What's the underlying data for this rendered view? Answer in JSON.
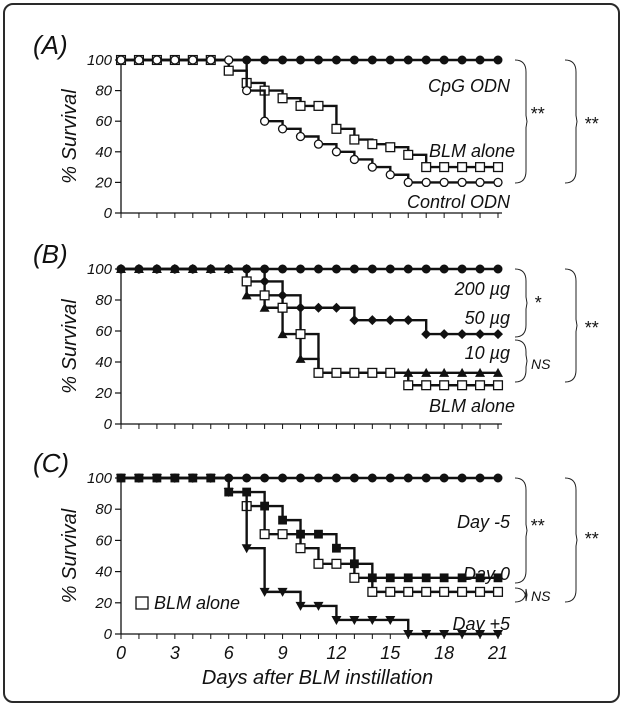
{
  "chart_data": [
    {
      "panel": "(A)",
      "type": "line",
      "step": true,
      "ylabel": "% Survival",
      "xlabel": "",
      "ylim": [
        0,
        100
      ],
      "xlim": [
        0,
        21
      ],
      "yticks": [
        "0",
        "20",
        "40",
        "60",
        "80",
        "100"
      ],
      "x": [
        0,
        1,
        2,
        3,
        4,
        5,
        6,
        7,
        8,
        9,
        10,
        11,
        12,
        13,
        14,
        15,
        16,
        17,
        18,
        19,
        20,
        21
      ],
      "series": [
        {
          "name": "CpG ODN",
          "marker": "circle-filled",
          "values": [
            100,
            100,
            100,
            100,
            100,
            100,
            100,
            100,
            100,
            100,
            100,
            100,
            100,
            100,
            100,
            100,
            100,
            100,
            100,
            100,
            100,
            100
          ]
        },
        {
          "name": "BLM alone",
          "marker": "square-open",
          "values": [
            100,
            100,
            100,
            100,
            100,
            100,
            93,
            85,
            80,
            75,
            70,
            70,
            55,
            48,
            45,
            43,
            38,
            30,
            30,
            30,
            30,
            30
          ]
        },
        {
          "name": "Control ODN",
          "marker": "circle-open",
          "values": [
            100,
            100,
            100,
            100,
            100,
            100,
            100,
            80,
            60,
            55,
            50,
            45,
            40,
            35,
            30,
            25,
            20,
            20,
            20,
            20,
            20,
            20
          ]
        }
      ],
      "annotations": [
        {
          "text": "**",
          "range": "CpG ODN vs BLM alone"
        },
        {
          "text": "**",
          "range": "CpG ODN vs Control ODN"
        }
      ]
    },
    {
      "panel": "(B)",
      "type": "line",
      "step": true,
      "ylabel": "% Survival",
      "xlabel": "",
      "ylim": [
        0,
        100
      ],
      "xlim": [
        0,
        21
      ],
      "yticks": [
        "0",
        "20",
        "40",
        "60",
        "80",
        "100"
      ],
      "x": [
        0,
        1,
        2,
        3,
        4,
        5,
        6,
        7,
        8,
        9,
        10,
        11,
        12,
        13,
        14,
        15,
        16,
        17,
        18,
        19,
        20,
        21
      ],
      "series": [
        {
          "name": "200 µg",
          "marker": "circle-filled",
          "values": [
            100,
            100,
            100,
            100,
            100,
            100,
            100,
            100,
            100,
            100,
            100,
            100,
            100,
            100,
            100,
            100,
            100,
            100,
            100,
            100,
            100,
            100
          ]
        },
        {
          "name": "50 µg",
          "marker": "diamond-filled",
          "values": [
            100,
            100,
            100,
            100,
            100,
            100,
            100,
            100,
            92,
            83,
            75,
            75,
            75,
            67,
            67,
            67,
            67,
            58,
            58,
            58,
            58,
            58
          ]
        },
        {
          "name": "10 µg",
          "marker": "triangle-filled",
          "values": [
            100,
            100,
            100,
            100,
            100,
            100,
            100,
            83,
            75,
            58,
            42,
            33,
            33,
            33,
            33,
            33,
            33,
            33,
            33,
            33,
            33,
            33
          ]
        },
        {
          "name": "BLM alone",
          "marker": "square-open",
          "values": [
            null,
            null,
            null,
            null,
            null,
            null,
            null,
            92,
            83,
            75,
            58,
            33,
            33,
            33,
            33,
            33,
            25,
            25,
            25,
            25,
            25,
            25
          ]
        }
      ],
      "annotations": [
        {
          "text": "*",
          "range": "200 µg vs 50 µg"
        },
        {
          "text": "NS",
          "range": "10 µg vs BLM alone"
        },
        {
          "text": "**",
          "range": "200 µg vs BLM alone"
        }
      ]
    },
    {
      "panel": "(C)",
      "type": "line",
      "step": true,
      "ylabel": "% Survival",
      "xlabel": "Days after BLM instillation",
      "ylim": [
        0,
        100
      ],
      "xlim": [
        0,
        21
      ],
      "yticks": [
        "0",
        "20",
        "40",
        "60",
        "80",
        "100"
      ],
      "xticks": [
        0,
        3,
        6,
        9,
        12,
        15,
        18,
        21
      ],
      "x": [
        0,
        1,
        2,
        3,
        4,
        5,
        6,
        7,
        8,
        9,
        10,
        11,
        12,
        13,
        14,
        15,
        16,
        17,
        18,
        19,
        20,
        21
      ],
      "series": [
        {
          "name": "Day -5",
          "marker": "circle-filled",
          "values": [
            100,
            100,
            100,
            100,
            100,
            100,
            100,
            100,
            100,
            100,
            100,
            100,
            100,
            100,
            100,
            100,
            100,
            100,
            100,
            100,
            100,
            100
          ]
        },
        {
          "name": "Day 0",
          "marker": "square-filled",
          "values": [
            100,
            100,
            100,
            100,
            100,
            100,
            91,
            91,
            82,
            73,
            64,
            64,
            55,
            45,
            36,
            36,
            36,
            36,
            36,
            36,
            36,
            36
          ]
        },
        {
          "name": "BLM alone",
          "marker": "square-open",
          "values": [
            null,
            null,
            null,
            null,
            null,
            null,
            null,
            82,
            64,
            64,
            55,
            45,
            45,
            36,
            27,
            27,
            27,
            27,
            27,
            27,
            27,
            27
          ]
        },
        {
          "name": "Day +5",
          "marker": "triangle-down-filled",
          "values": [
            100,
            100,
            100,
            100,
            100,
            100,
            91,
            55,
            27,
            27,
            18,
            18,
            9,
            9,
            9,
            9,
            0,
            0,
            0,
            0,
            0,
            0
          ]
        }
      ],
      "legend_label": "BLM alone",
      "annotations": [
        {
          "text": "**",
          "range": "Day -5 vs Day 0"
        },
        {
          "text": "NS",
          "range": "Day 0 vs BLM alone"
        },
        {
          "text": "**",
          "range": "Day -5 vs BLM alone"
        }
      ]
    }
  ]
}
